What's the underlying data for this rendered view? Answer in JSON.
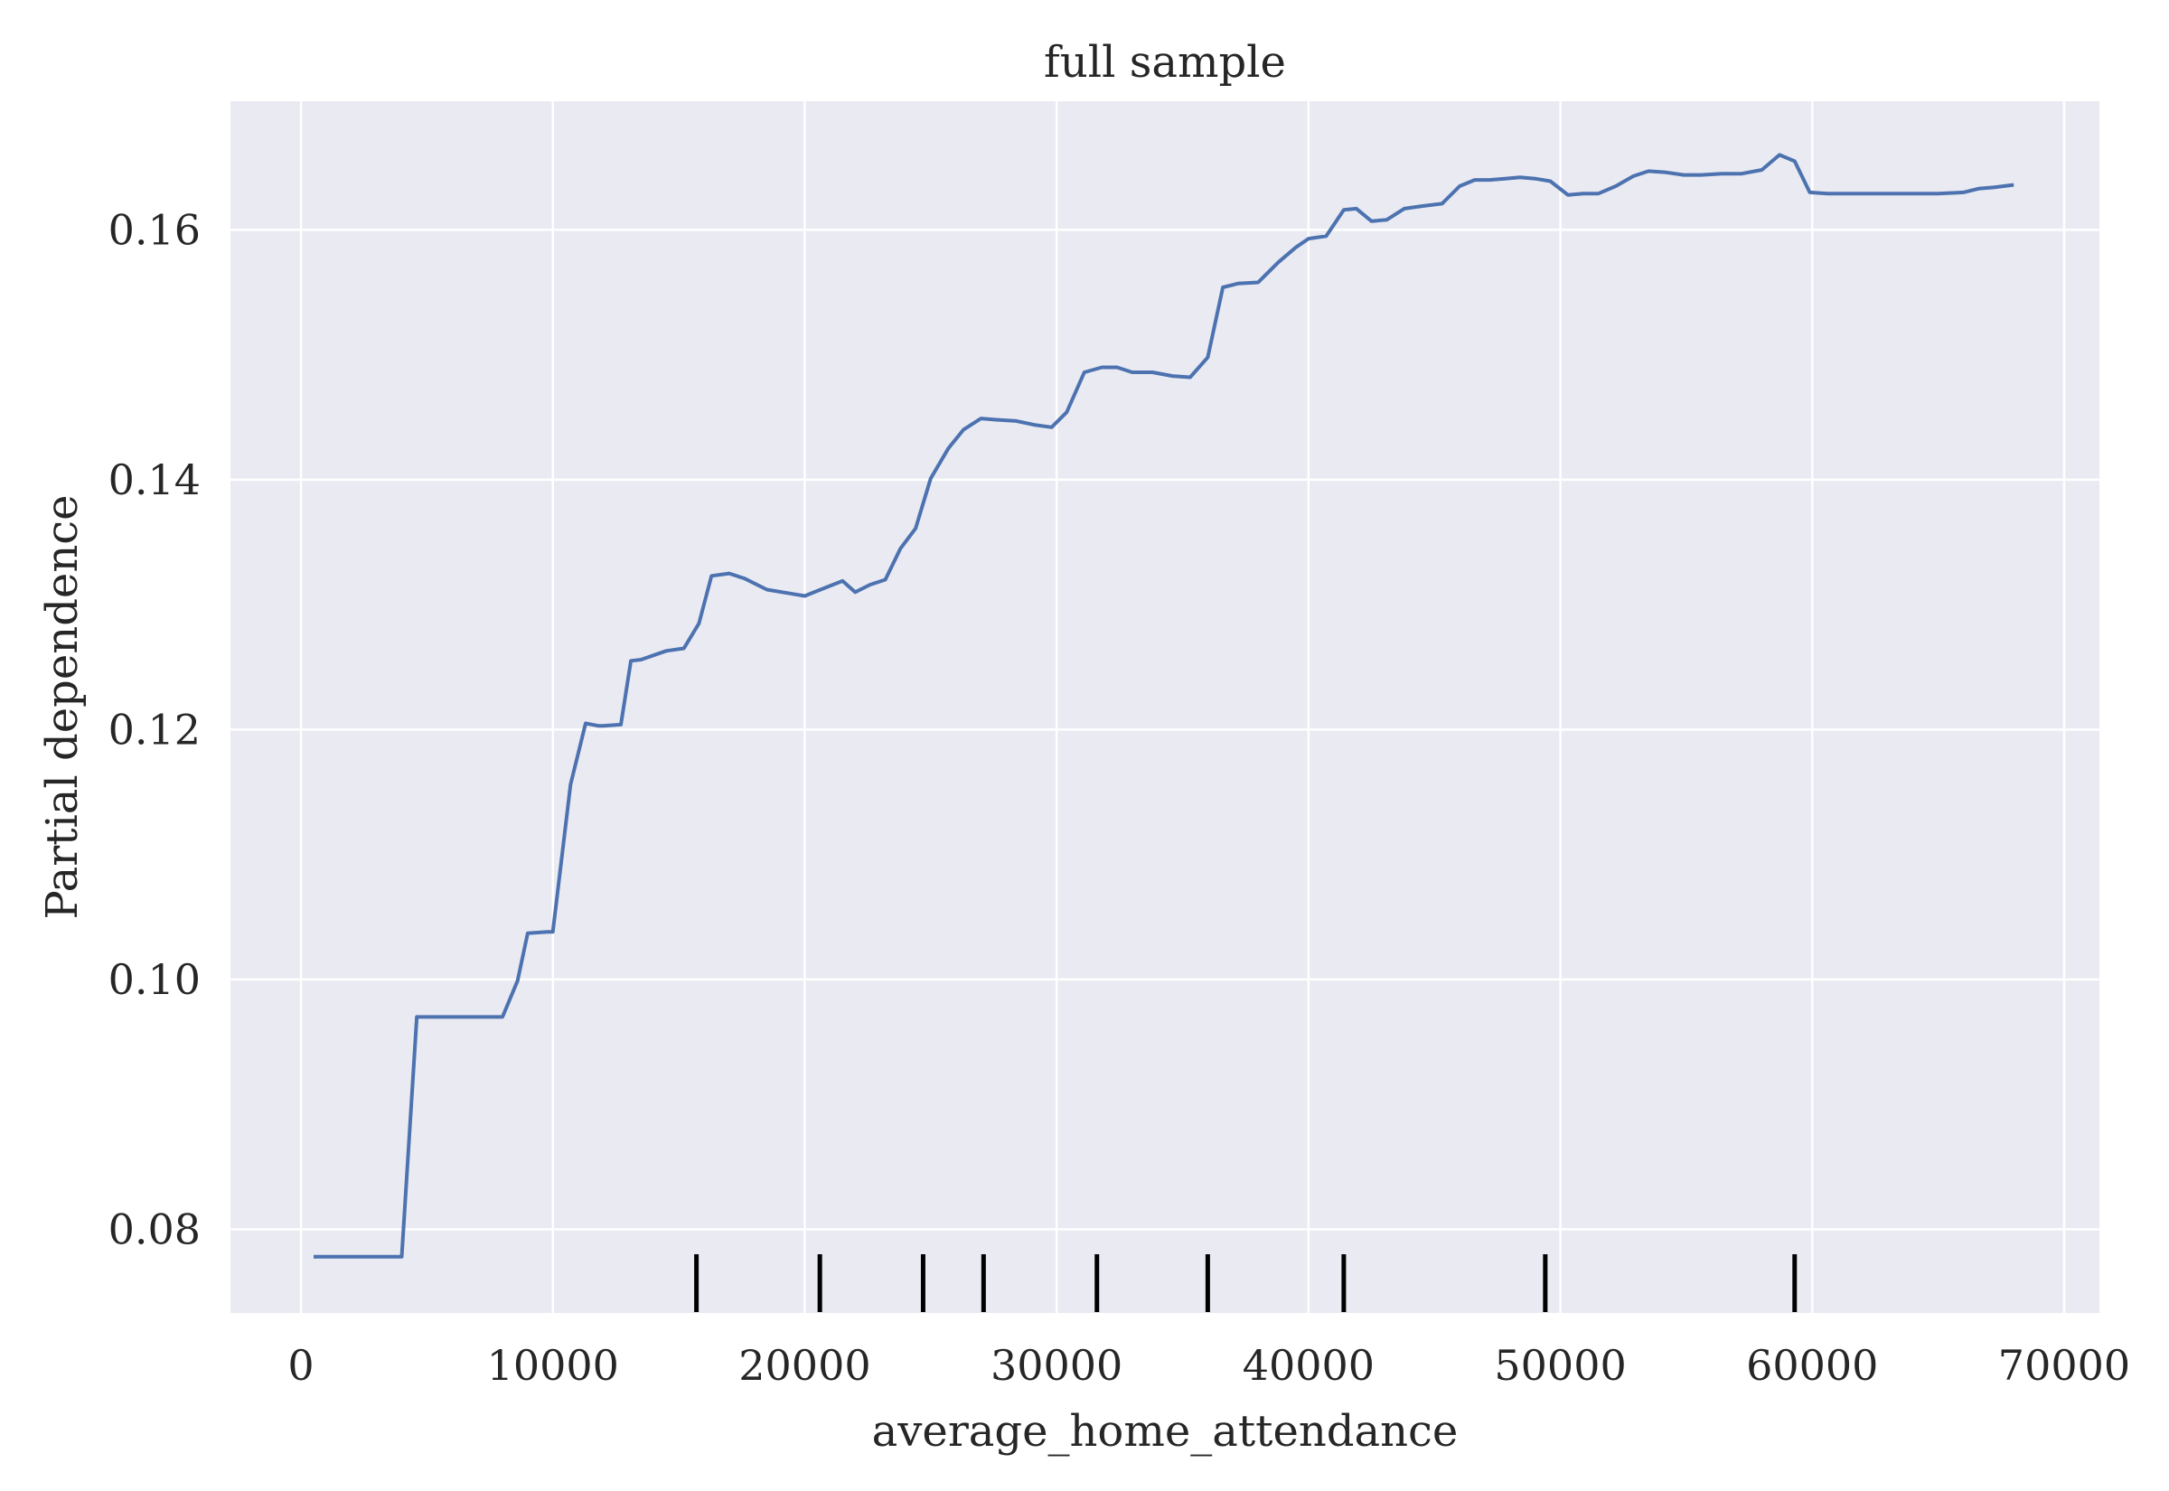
{
  "chart_data": {
    "type": "line",
    "title": "full sample",
    "xlabel": "average_home_attendance",
    "ylabel": "Partial dependence",
    "xlim": [
      -2800,
      71400
    ],
    "ylim": [
      0.0733,
      0.1703
    ],
    "xticks": [
      0,
      10000,
      20000,
      30000,
      40000,
      50000,
      60000,
      70000
    ],
    "xtick_labels": [
      "0",
      "10000",
      "20000",
      "30000",
      "40000",
      "50000",
      "60000",
      "70000"
    ],
    "yticks": [
      0.08,
      0.1,
      0.12,
      0.14,
      0.16
    ],
    "ytick_labels": [
      "0.08",
      "0.10",
      "0.12",
      "0.14",
      "0.16"
    ],
    "grid": true,
    "background": "#EAEAF2",
    "line_color": "#4C72B0",
    "rug_color": "#000000",
    "series": [
      {
        "x": [
          500,
          1300,
          2000,
          2800,
          3500,
          4000,
          4600,
          5500,
          6500,
          7500,
          8000,
          8600,
          9000,
          9800,
          10000,
          10700,
          11300,
          11800,
          12000,
          12700,
          13100,
          13500,
          14500,
          15200,
          15800,
          16300,
          17000,
          17600,
          18500,
          19400,
          20000,
          20500,
          21500,
          22000,
          22600,
          23200,
          23800,
          24400,
          25000,
          25700,
          26300,
          27000,
          27600,
          28400,
          29100,
          29800,
          30400,
          31100,
          31800,
          32400,
          33000,
          33800,
          34600,
          35300,
          36000,
          36600,
          37200,
          38000,
          38800,
          39500,
          40000,
          40700,
          41400,
          41900,
          42500,
          43100,
          43800,
          44500,
          45300,
          46000,
          46600,
          47200,
          47800,
          48400,
          49000,
          49600,
          50300,
          50900,
          51500,
          52200,
          52900,
          53500,
          54200,
          54900,
          55600,
          56400,
          57200,
          58000,
          58700,
          59300,
          59900,
          60600,
          62000,
          63500,
          65000,
          66000,
          66600,
          67200,
          68000
        ],
        "y": [
          0.0778,
          0.0778,
          0.0778,
          0.0778,
          0.0778,
          0.0778,
          0.097,
          0.097,
          0.097,
          0.097,
          0.097,
          0.0999,
          0.1037,
          0.1038,
          0.1038,
          0.1156,
          0.1205,
          0.1203,
          0.1203,
          0.1204,
          0.1255,
          0.1256,
          0.1263,
          0.1265,
          0.1285,
          0.1323,
          0.1325,
          0.1321,
          0.1312,
          0.1309,
          0.1307,
          0.1311,
          0.1319,
          0.131,
          0.1316,
          0.132,
          0.1345,
          0.1361,
          0.1401,
          0.1425,
          0.144,
          0.1449,
          0.1448,
          0.1447,
          0.1444,
          0.1442,
          0.1454,
          0.1486,
          0.149,
          0.149,
          0.1486,
          0.1486,
          0.1483,
          0.1482,
          0.1498,
          0.1554,
          0.1557,
          0.1558,
          0.1574,
          0.1586,
          0.1593,
          0.1595,
          0.1616,
          0.1617,
          0.1607,
          0.1608,
          0.1617,
          0.1619,
          0.1621,
          0.1635,
          0.164,
          0.164,
          0.1641,
          0.1642,
          0.1641,
          0.1639,
          0.1628,
          0.1629,
          0.1629,
          0.1635,
          0.1643,
          0.1647,
          0.1646,
          0.1644,
          0.1644,
          0.1645,
          0.1645,
          0.1648,
          0.166,
          0.1655,
          0.163,
          0.1629,
          0.1629,
          0.1629,
          0.1629,
          0.163,
          0.1633,
          0.1634,
          0.1636
        ]
      }
    ],
    "rug_x": [
      15700,
      20600,
      24700,
      27100,
      31600,
      36000,
      41400,
      49400,
      59300
    ]
  }
}
